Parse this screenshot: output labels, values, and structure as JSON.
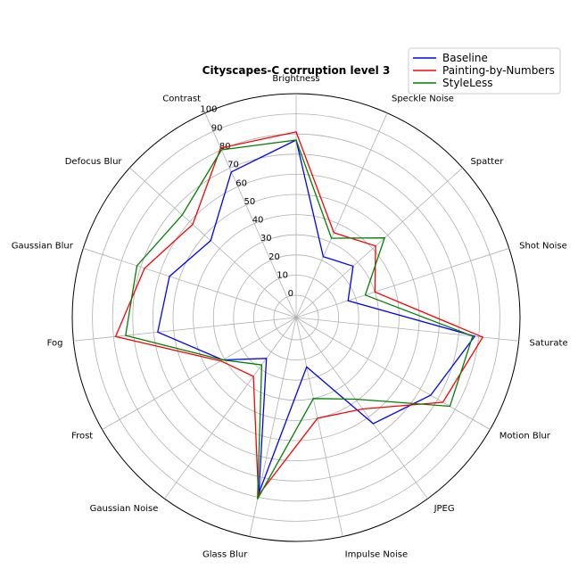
{
  "chart_data": {
    "type": "radar",
    "title": "Cityscapes-C corruption level 3",
    "categories": [
      "Brightness",
      "Speckle Noise",
      "Spatter",
      "Shot Noise",
      "Saturate",
      "Motion Blur",
      "JPEG",
      "Impulse Noise",
      "Glass Blur",
      "Gaussian Noise",
      "Frost",
      "Fog",
      "Gaussian Blur",
      "Defocus Blur",
      "Contrast"
    ],
    "rlim": [
      0,
      100
    ],
    "rticks": [
      0,
      10,
      20,
      30,
      40,
      50,
      60,
      70,
      80,
      90,
      100
    ],
    "grid": true,
    "legend_position": "top-right",
    "series": [
      {
        "name": "Baseline",
        "color": "#0000ff",
        "values": [
          77,
          22,
          27,
          16,
          78,
          66,
          54,
          14,
          78,
          14,
          31,
          58,
          55,
          46,
          68
        ]
      },
      {
        "name": "Painting-by-Numbers",
        "color": "#ff0000",
        "values": [
          81,
          35,
          42,
          30,
          82,
          73,
          45,
          40,
          79,
          25,
          32,
          79,
          68,
          58,
          81
        ]
      },
      {
        "name": "StyleLess",
        "color": "#008000",
        "values": [
          77,
          32,
          48,
          25,
          77,
          77,
          39,
          30,
          81,
          18,
          31,
          74,
          72,
          65,
          80
        ]
      }
    ]
  }
}
